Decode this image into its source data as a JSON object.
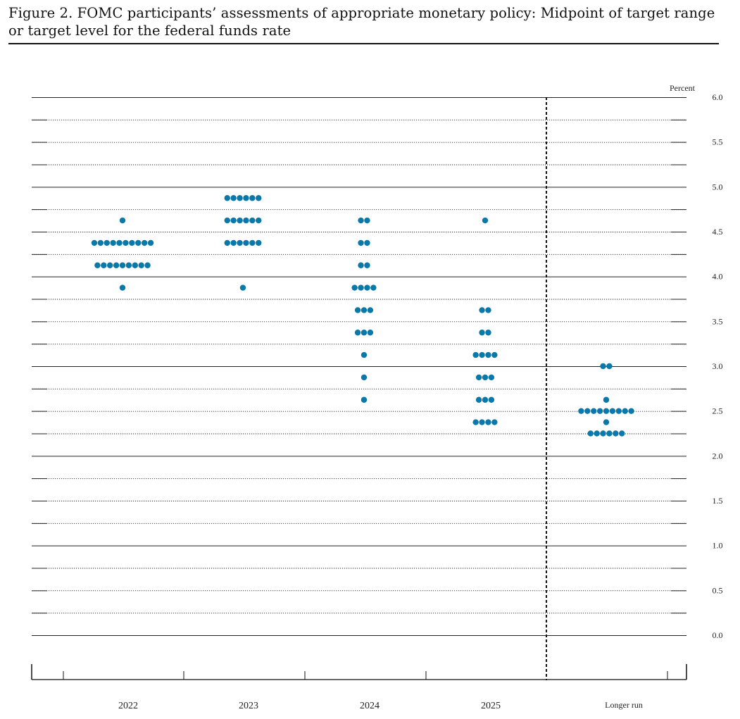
{
  "figure": {
    "title": "Figure 2.  FOMC participants’ assessments of appropriate monetary policy:  Midpoint of target range or target level for the federal funds rate"
  },
  "chart_data": {
    "type": "scatter",
    "style": "dot plot",
    "title": "Figure 2.  FOMC participants’ assessments of appropriate monetary policy:  Midpoint of target range or target level for the federal funds rate",
    "ylabel": "Percent",
    "ylim": [
      0,
      6
    ],
    "yticks": [
      "0.0",
      "0.5",
      "1.0",
      "1.5",
      "2.0",
      "2.5",
      "3.0",
      "3.5",
      "4.0",
      "4.5",
      "5.0",
      "5.5",
      "6.0"
    ],
    "categories": [
      "2022",
      "2023",
      "2024",
      "2025",
      "Longer run"
    ],
    "dot_color": "#0a78a8",
    "grid": "dotted at 0.25 intervals, solid at whole percents",
    "separator": "dashed vertical line before Longer run",
    "projections": [
      {
        "category": "2022",
        "points": [
          {
            "rate": 4.625,
            "count": 1
          },
          {
            "rate": 4.375,
            "count": 10
          },
          {
            "rate": 4.125,
            "count": 9
          },
          {
            "rate": 3.875,
            "count": 1
          }
        ]
      },
      {
        "category": "2023",
        "points": [
          {
            "rate": 4.875,
            "count": 6
          },
          {
            "rate": 4.625,
            "count": 6
          },
          {
            "rate": 4.375,
            "count": 6
          },
          {
            "rate": 3.875,
            "count": 1
          }
        ]
      },
      {
        "category": "2024",
        "points": [
          {
            "rate": 4.625,
            "count": 2
          },
          {
            "rate": 4.375,
            "count": 2
          },
          {
            "rate": 4.125,
            "count": 2
          },
          {
            "rate": 3.875,
            "count": 4
          },
          {
            "rate": 3.625,
            "count": 3
          },
          {
            "rate": 3.375,
            "count": 3
          },
          {
            "rate": 3.125,
            "count": 1
          },
          {
            "rate": 2.875,
            "count": 1
          },
          {
            "rate": 2.625,
            "count": 1
          }
        ]
      },
      {
        "category": "2025",
        "points": [
          {
            "rate": 4.625,
            "count": 1
          },
          {
            "rate": 3.625,
            "count": 2
          },
          {
            "rate": 3.375,
            "count": 2
          },
          {
            "rate": 3.125,
            "count": 4
          },
          {
            "rate": 2.875,
            "count": 3
          },
          {
            "rate": 2.625,
            "count": 3
          },
          {
            "rate": 2.375,
            "count": 4
          }
        ]
      },
      {
        "category": "Longer run",
        "points": [
          {
            "rate": 3.0,
            "count": 2
          },
          {
            "rate": 2.625,
            "count": 1
          },
          {
            "rate": 2.5,
            "count": 9
          },
          {
            "rate": 2.375,
            "count": 1
          },
          {
            "rate": 2.25,
            "count": 6
          }
        ]
      }
    ]
  }
}
